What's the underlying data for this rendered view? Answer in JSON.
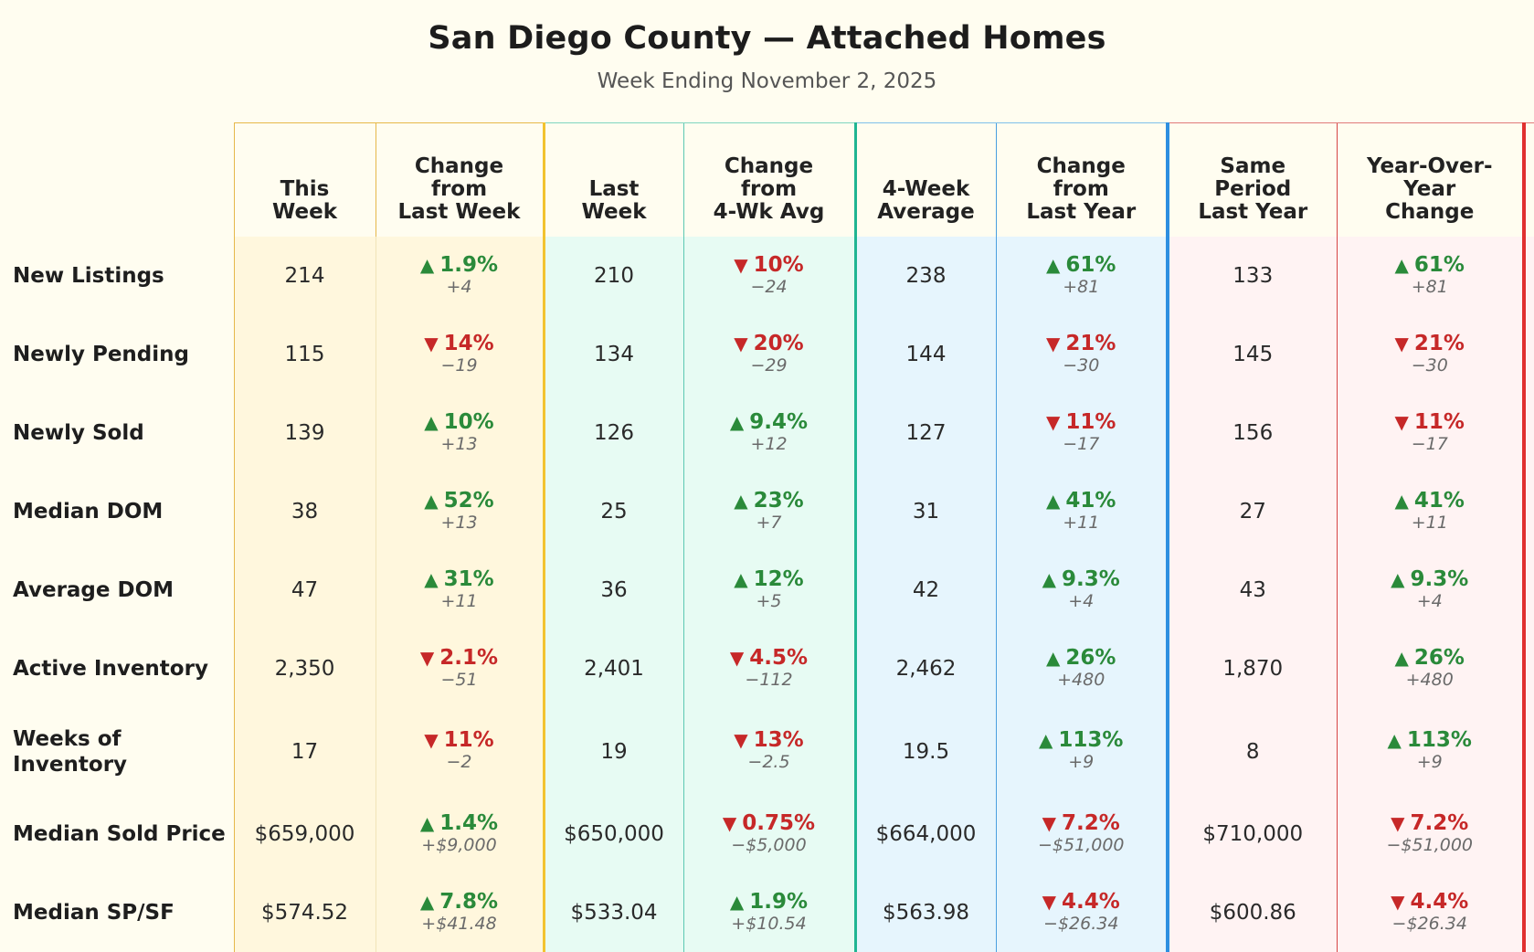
{
  "title": "San Diego County — Attached Homes",
  "subtitle": "Week Ending November 2, 2025",
  "colors": {
    "up": "#2a8a3a",
    "down": "#c62828",
    "band1": "#fff7dd",
    "band2": "#e7fbf3",
    "band3": "#e6f5fd",
    "band4": "#fff3f3"
  },
  "headers": {
    "this_week": [
      "This",
      "Week"
    ],
    "chg_last_week": [
      "Change",
      "from",
      "Last Week"
    ],
    "last_week": [
      "Last",
      "Week"
    ],
    "chg_4wk": [
      "Change",
      "from",
      "4-Wk Avg"
    ],
    "four_week_avg": [
      "4-Week",
      "Average"
    ],
    "chg_last_year": [
      "Change",
      "from",
      "Last Year"
    ],
    "same_period": [
      "Same",
      "Period",
      "Last Year"
    ],
    "yoy": [
      "Year-Over-",
      "Year",
      "Change"
    ]
  },
  "rows": [
    {
      "label": "New Listings",
      "this_week": "214",
      "chg_lw": {
        "dir": "up",
        "pct": "1.9%",
        "delta": "+4"
      },
      "last_week": "210",
      "chg_4wk": {
        "dir": "down",
        "pct": "10%",
        "delta": "−24"
      },
      "avg4": "238",
      "chg_ly": {
        "dir": "up",
        "pct": "61%",
        "delta": "+81"
      },
      "same_period": "133",
      "yoy": {
        "dir": "up",
        "pct": "61%",
        "delta": "+81"
      }
    },
    {
      "label": "Newly Pending",
      "this_week": "115",
      "chg_lw": {
        "dir": "down",
        "pct": "14%",
        "delta": "−19"
      },
      "last_week": "134",
      "chg_4wk": {
        "dir": "down",
        "pct": "20%",
        "delta": "−29"
      },
      "avg4": "144",
      "chg_ly": {
        "dir": "down",
        "pct": "21%",
        "delta": "−30"
      },
      "same_period": "145",
      "yoy": {
        "dir": "down",
        "pct": "21%",
        "delta": "−30"
      }
    },
    {
      "label": "Newly Sold",
      "this_week": "139",
      "chg_lw": {
        "dir": "up",
        "pct": "10%",
        "delta": "+13"
      },
      "last_week": "126",
      "chg_4wk": {
        "dir": "up",
        "pct": "9.4%",
        "delta": "+12"
      },
      "avg4": "127",
      "chg_ly": {
        "dir": "down",
        "pct": "11%",
        "delta": "−17"
      },
      "same_period": "156",
      "yoy": {
        "dir": "down",
        "pct": "11%",
        "delta": "−17"
      }
    },
    {
      "label": "Median DOM",
      "this_week": "38",
      "chg_lw": {
        "dir": "up",
        "pct": "52%",
        "delta": "+13"
      },
      "last_week": "25",
      "chg_4wk": {
        "dir": "up",
        "pct": "23%",
        "delta": "+7"
      },
      "avg4": "31",
      "chg_ly": {
        "dir": "up",
        "pct": "41%",
        "delta": "+11"
      },
      "same_period": "27",
      "yoy": {
        "dir": "up",
        "pct": "41%",
        "delta": "+11"
      }
    },
    {
      "label": "Average DOM",
      "this_week": "47",
      "chg_lw": {
        "dir": "up",
        "pct": "31%",
        "delta": "+11"
      },
      "last_week": "36",
      "chg_4wk": {
        "dir": "up",
        "pct": "12%",
        "delta": "+5"
      },
      "avg4": "42",
      "chg_ly": {
        "dir": "up",
        "pct": "9.3%",
        "delta": "+4"
      },
      "same_period": "43",
      "yoy": {
        "dir": "up",
        "pct": "9.3%",
        "delta": "+4"
      }
    },
    {
      "label": "Active Inventory",
      "this_week": "2,350",
      "chg_lw": {
        "dir": "down",
        "pct": "2.1%",
        "delta": "−51"
      },
      "last_week": "2,401",
      "chg_4wk": {
        "dir": "down",
        "pct": "4.5%",
        "delta": "−112"
      },
      "avg4": "2,462",
      "chg_ly": {
        "dir": "up",
        "pct": "26%",
        "delta": "+480"
      },
      "same_period": "1,870",
      "yoy": {
        "dir": "up",
        "pct": "26%",
        "delta": "+480"
      }
    },
    {
      "label": "Weeks of Inventory",
      "this_week": "17",
      "chg_lw": {
        "dir": "down",
        "pct": "11%",
        "delta": "−2"
      },
      "last_week": "19",
      "chg_4wk": {
        "dir": "down",
        "pct": "13%",
        "delta": "−2.5"
      },
      "avg4": "19.5",
      "chg_ly": {
        "dir": "up",
        "pct": "113%",
        "delta": "+9"
      },
      "same_period": "8",
      "yoy": {
        "dir": "up",
        "pct": "113%",
        "delta": "+9"
      }
    },
    {
      "label": "Median Sold Price",
      "this_week": "$659,000",
      "chg_lw": {
        "dir": "up",
        "pct": "1.4%",
        "delta": "+$9,000"
      },
      "last_week": "$650,000",
      "chg_4wk": {
        "dir": "down",
        "pct": "0.75%",
        "delta": "−$5,000"
      },
      "avg4": "$664,000",
      "chg_ly": {
        "dir": "down",
        "pct": "7.2%",
        "delta": "−$51,000"
      },
      "same_period": "$710,000",
      "yoy": {
        "dir": "down",
        "pct": "7.2%",
        "delta": "−$51,000"
      }
    },
    {
      "label": "Median SP/SF",
      "this_week": "$574.52",
      "chg_lw": {
        "dir": "up",
        "pct": "7.8%",
        "delta": "+$41.48"
      },
      "last_week": "$533.04",
      "chg_4wk": {
        "dir": "up",
        "pct": "1.9%",
        "delta": "+$10.54"
      },
      "avg4": "$563.98",
      "chg_ly": {
        "dir": "down",
        "pct": "4.4%",
        "delta": "−$26.34"
      },
      "same_period": "$600.86",
      "yoy": {
        "dir": "down",
        "pct": "4.4%",
        "delta": "−$26.34"
      }
    }
  ]
}
